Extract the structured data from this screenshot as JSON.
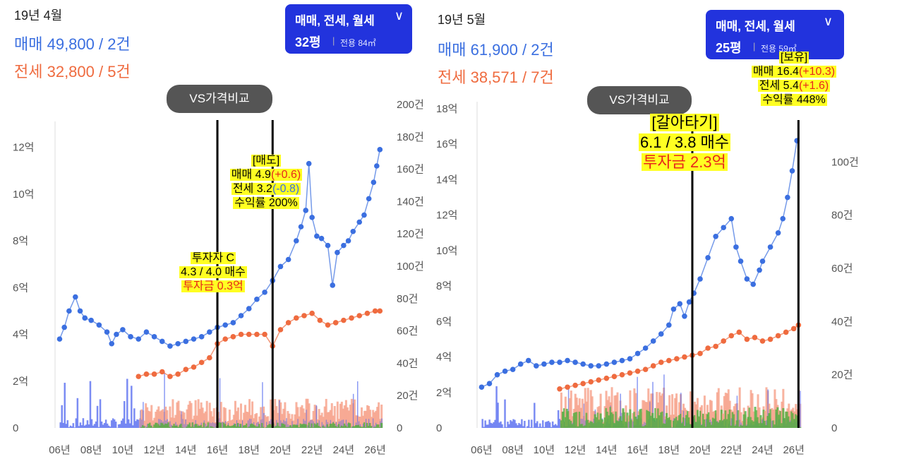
{
  "left": {
    "month": "19년 4월",
    "sale_line": "매매 49,800 / 2건",
    "jeonse_line": "전세 32,800 / 5건",
    "selector": {
      "types": "매매, 전세, 월세",
      "chevron": "chevron-down",
      "pyeong": "32평",
      "exclusive": "전용 84㎡"
    },
    "vs_button": "VS가격비교",
    "annotations": {
      "sell_title": "[매도]",
      "sell_sale": "매매 4.9",
      "sell_sale_delta": "(+0.6)",
      "sell_jeonse": "전세 3.2",
      "sell_jeonse_delta": "(-0.8)",
      "sell_return": "수익률 200%",
      "buy_title": "투자자 C",
      "buy_prices": "4.3 / 4.0 매수",
      "buy_invest": "투자금 0.3억"
    }
  },
  "right": {
    "month": "19년 5월",
    "sale_line": "매매 61,900 / 2건",
    "jeonse_line": "전세 38,571 / 7건",
    "selector": {
      "types": "매매, 전세, 월세",
      "chevron": "chevron-down",
      "pyeong": "25평",
      "exclusive": "전용 59㎡"
    },
    "vs_button": "VS가격비교",
    "annotations": {
      "hold_title": "[보유]",
      "hold_sale": "매매 16.4",
      "hold_sale_delta": "(+10.3)",
      "hold_jeonse": "전세 5.4",
      "hold_jeonse_delta": "(+1.6)",
      "hold_return": "수익률 448%",
      "switch_title": "[갈아타기]",
      "switch_prices": "6.1 / 3.8 매수",
      "switch_invest": "투자금 2.3억"
    }
  },
  "colors": {
    "sale": "#3b6fe0",
    "jeonse": "#ef6b3f",
    "volume_sale": "#5a6ff0",
    "volume_jeonse": "#f59a80",
    "volume_monthly": "#4caf3c",
    "marker": "#000000",
    "highlight": "#ffff22",
    "selector": "#2233dd"
  },
  "chart_data": [
    {
      "type": "line",
      "x_ticks": [
        "06년",
        "08년",
        "10년",
        "12년",
        "14년",
        "16년",
        "18년",
        "20년",
        "22년",
        "24년",
        "26년"
      ],
      "y_ticks": [
        "0",
        "2억",
        "4억",
        "6억",
        "8억",
        "10억",
        "12억"
      ],
      "y2_ticks": [
        "0",
        "20건",
        "40건",
        "60건",
        "80건",
        "100건",
        "120건",
        "140건",
        "160건",
        "180건",
        "200건"
      ],
      "ylim": [
        0,
        12.8
      ],
      "y2lim": [
        0,
        200
      ],
      "xlim": [
        2005.8,
        2026.6
      ],
      "series": [
        {
          "key": "sale",
          "x": [
            2006.0,
            2006.3,
            2006.6,
            2007.0,
            2007.3,
            2007.6,
            2008.0,
            2008.5,
            2009.0,
            2009.3,
            2009.6,
            2010.0,
            2010.5,
            2011.0,
            2011.5,
            2012.0,
            2012.5,
            2013.0,
            2013.5,
            2014.0,
            2014.5,
            2015.0,
            2015.5,
            2016.0,
            2016.5,
            2017.0,
            2017.5,
            2018.0,
            2018.5,
            2019.0,
            2019.5,
            2020.0,
            2020.5,
            2021.0,
            2021.3,
            2021.6,
            2021.8,
            2022.0,
            2022.3,
            2022.6,
            2023.0,
            2023.3,
            2023.6,
            2024.0,
            2024.3,
            2024.6,
            2025.0,
            2025.3,
            2025.6,
            2025.9,
            2026.1,
            2026.3
          ],
          "values": [
            3.8,
            4.3,
            5.0,
            5.6,
            5.0,
            4.7,
            4.6,
            4.4,
            4.1,
            3.6,
            4.0,
            4.2,
            3.9,
            3.8,
            4.1,
            3.9,
            3.7,
            3.5,
            3.6,
            3.7,
            3.8,
            3.9,
            4.1,
            4.3,
            4.4,
            4.5,
            4.8,
            5.1,
            5.5,
            5.8,
            6.3,
            6.9,
            7.2,
            8.0,
            8.6,
            9.3,
            11.3,
            9.0,
            8.2,
            8.1,
            7.8,
            6.1,
            7.5,
            7.8,
            8.0,
            8.4,
            8.8,
            9.1,
            9.8,
            10.5,
            11.2,
            11.9
          ]
        },
        {
          "key": "jeonse",
          "x": [
            2011.0,
            2011.5,
            2012.0,
            2012.5,
            2013.0,
            2013.5,
            2014.0,
            2014.5,
            2015.0,
            2015.5,
            2016.0,
            2016.5,
            2017.0,
            2017.5,
            2018.0,
            2018.5,
            2019.0,
            2019.5,
            2020.0,
            2020.5,
            2021.0,
            2021.5,
            2022.0,
            2022.5,
            2023.0,
            2023.5,
            2024.0,
            2024.5,
            2025.0,
            2025.5,
            2026.0,
            2026.3
          ],
          "values": [
            2.2,
            2.3,
            2.3,
            2.4,
            2.2,
            2.3,
            2.5,
            2.6,
            2.8,
            3.0,
            3.6,
            3.8,
            3.9,
            4.0,
            4.0,
            4.0,
            4.0,
            3.5,
            4.2,
            4.5,
            4.7,
            4.8,
            4.9,
            4.6,
            4.4,
            4.5,
            4.6,
            4.7,
            4.8,
            4.9,
            5.0,
            5.0
          ]
        }
      ],
      "markers": [
        {
          "x": 2016.0,
          "label": "buy"
        },
        {
          "x": 2019.5,
          "label": "sell"
        }
      ]
    },
    {
      "type": "line",
      "x_ticks": [
        "06년",
        "08년",
        "10년",
        "12년",
        "14년",
        "16년",
        "18년",
        "20년",
        "22년",
        "24년",
        "26년"
      ],
      "y_ticks": [
        "0",
        "2억",
        "4억",
        "6억",
        "8억",
        "10억",
        "12억",
        "14억",
        "16억",
        "18억"
      ],
      "y2_ticks": [
        "0",
        "20건",
        "40건",
        "60건",
        "80건",
        "100건"
      ],
      "ylim": [
        0,
        18
      ],
      "y2lim": [
        0,
        120
      ],
      "xlim": [
        2005.8,
        2026.6
      ],
      "series": [
        {
          "key": "sale",
          "x": [
            2006.0,
            2006.5,
            2007.0,
            2007.5,
            2008.0,
            2008.5,
            2009.0,
            2009.5,
            2010.0,
            2010.5,
            2011.0,
            2011.5,
            2012.0,
            2012.5,
            2013.0,
            2013.5,
            2014.0,
            2014.5,
            2015.0,
            2015.5,
            2016.0,
            2016.5,
            2017.0,
            2017.5,
            2018.0,
            2018.3,
            2018.7,
            2019.0,
            2019.3,
            2019.6,
            2020.0,
            2020.5,
            2021.0,
            2021.5,
            2022.0,
            2022.3,
            2022.6,
            2023.0,
            2023.4,
            2023.8,
            2024.0,
            2024.5,
            2025.0,
            2025.3,
            2025.6,
            2025.9,
            2026.2
          ],
          "values": [
            2.3,
            2.5,
            3.0,
            3.2,
            3.3,
            3.6,
            3.8,
            3.5,
            3.6,
            3.7,
            3.7,
            3.8,
            3.7,
            3.6,
            3.5,
            3.5,
            3.6,
            3.7,
            3.8,
            3.9,
            4.2,
            4.5,
            4.9,
            5.3,
            5.8,
            6.7,
            7.0,
            6.3,
            7.1,
            7.6,
            8.4,
            9.6,
            10.8,
            11.3,
            11.8,
            10.2,
            9.4,
            8.4,
            8.1,
            8.9,
            9.4,
            10.2,
            11.0,
            11.8,
            13.0,
            14.5,
            16.2
          ]
        },
        {
          "key": "jeonse",
          "x": [
            2011.0,
            2011.5,
            2012.0,
            2012.5,
            2013.0,
            2013.5,
            2014.0,
            2014.5,
            2015.0,
            2015.5,
            2016.0,
            2016.5,
            2017.0,
            2017.5,
            2018.0,
            2018.5,
            2019.0,
            2019.5,
            2020.0,
            2020.5,
            2021.0,
            2021.5,
            2022.0,
            2022.5,
            2023.0,
            2023.5,
            2024.0,
            2024.5,
            2025.0,
            2025.5,
            2026.0,
            2026.3
          ],
          "values": [
            2.2,
            2.3,
            2.4,
            2.5,
            2.6,
            2.7,
            2.8,
            2.9,
            3.0,
            3.1,
            3.2,
            3.3,
            3.5,
            3.7,
            3.8,
            3.9,
            4.0,
            4.1,
            4.2,
            4.5,
            4.6,
            4.9,
            5.2,
            5.4,
            5.0,
            5.1,
            4.9,
            5.0,
            5.2,
            5.4,
            5.6,
            5.8
          ]
        }
      ],
      "markers": [
        {
          "x": 2019.5,
          "label": "switch"
        },
        {
          "x": 2026.3,
          "label": "hold"
        }
      ]
    }
  ]
}
